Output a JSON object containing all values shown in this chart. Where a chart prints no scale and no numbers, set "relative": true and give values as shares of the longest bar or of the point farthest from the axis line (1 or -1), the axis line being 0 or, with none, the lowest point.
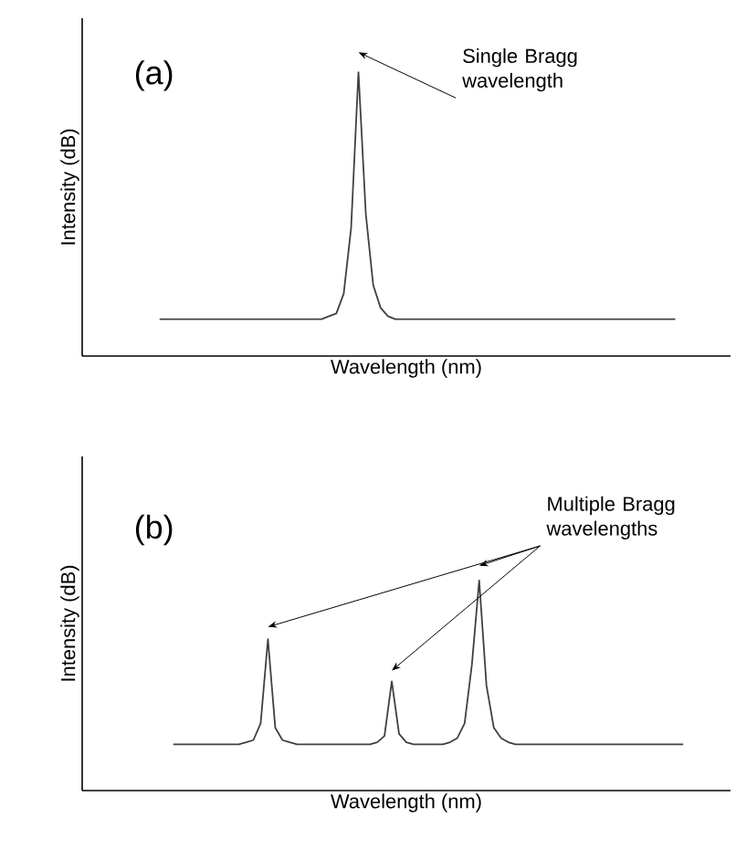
{
  "chart_data": [
    {
      "type": "line",
      "relative": true,
      "xlabel": "Wavelength (nm)",
      "ylabel": "Intensity (dB)",
      "annotations": [
        "(a)",
        "Single Bragg wavelength"
      ],
      "categories": [
        null,
        null,
        null,
        null,
        null,
        null,
        null,
        null,
        null,
        null,
        null,
        null,
        null,
        null,
        null,
        null,
        null,
        null,
        null,
        null,
        null,
        null,
        null,
        null,
        null,
        null,
        null,
        null,
        null,
        null,
        null,
        null,
        null,
        null,
        null,
        null,
        null,
        null,
        null,
        null,
        null,
        null,
        null,
        null,
        null,
        null,
        null,
        null,
        null,
        null,
        null,
        null,
        null,
        null,
        null,
        null,
        null,
        null,
        null,
        null,
        null,
        null,
        null,
        null,
        null,
        null,
        null,
        null,
        null,
        null,
        null
      ],
      "series": [
        {
          "color": "#404040",
          "values": [
            0.13,
            0.13,
            0.13,
            0.13,
            0.13,
            0.13,
            0.13,
            0.13,
            0.13,
            0.13,
            0.13,
            0.13,
            0.13,
            0.13,
            0.13,
            0.13,
            0.13,
            0.13,
            0.13,
            0.13,
            0.13,
            0.13,
            0.13,
            0.14,
            0.15,
            0.22,
            0.45,
            1.0,
            0.5,
            0.25,
            0.17,
            0.14,
            0.13,
            0.13,
            0.13,
            0.13,
            0.13,
            0.13,
            0.13,
            0.13,
            0.13,
            0.13,
            0.13,
            0.13,
            0.13,
            0.13,
            0.13,
            0.13,
            0.13,
            0.13,
            0.13,
            0.13,
            0.13,
            0.13,
            0.13,
            0.13,
            0.13,
            0.13,
            0.13,
            0.13,
            0.13,
            0.13,
            0.13,
            0.13,
            0.13,
            0.13,
            0.13,
            0.13,
            0.13,
            0.13,
            0.13
          ]
        }
      ]
    },
    {
      "type": "line",
      "relative": true,
      "xlabel": "Wavelength (nm)",
      "ylabel": "Intensity (dB)",
      "annotations": [
        "(b)",
        "Multiple Bragg wavelengths"
      ],
      "categories": [
        null,
        null,
        null,
        null,
        null,
        null,
        null,
        null,
        null,
        null,
        null,
        null,
        null,
        null,
        null,
        null,
        null,
        null,
        null,
        null,
        null,
        null,
        null,
        null,
        null,
        null,
        null,
        null,
        null,
        null,
        null,
        null,
        null,
        null,
        null,
        null,
        null,
        null,
        null,
        null,
        null,
        null,
        null,
        null,
        null,
        null,
        null,
        null,
        null,
        null,
        null,
        null,
        null,
        null,
        null,
        null,
        null,
        null,
        null,
        null,
        null,
        null,
        null,
        null,
        null,
        null,
        null,
        null,
        null,
        null,
        null
      ],
      "series": [
        {
          "color": "#404040",
          "values": [
            0.22,
            0.22,
            0.22,
            0.22,
            0.22,
            0.22,
            0.22,
            0.22,
            0.22,
            0.22,
            0.23,
            0.24,
            0.32,
            0.72,
            0.3,
            0.24,
            0.23,
            0.22,
            0.22,
            0.22,
            0.22,
            0.22,
            0.22,
            0.22,
            0.22,
            0.22,
            0.22,
            0.22,
            0.23,
            0.26,
            0.52,
            0.27,
            0.23,
            0.22,
            0.22,
            0.22,
            0.22,
            0.22,
            0.23,
            0.25,
            0.32,
            0.6,
            1.0,
            0.5,
            0.3,
            0.25,
            0.23,
            0.22,
            0.22,
            0.22,
            0.22,
            0.22,
            0.22,
            0.22,
            0.22,
            0.22,
            0.22,
            0.22,
            0.22,
            0.22,
            0.22,
            0.22,
            0.22,
            0.22,
            0.22,
            0.22,
            0.22,
            0.22,
            0.22,
            0.22,
            0.22
          ]
        }
      ]
    }
  ]
}
